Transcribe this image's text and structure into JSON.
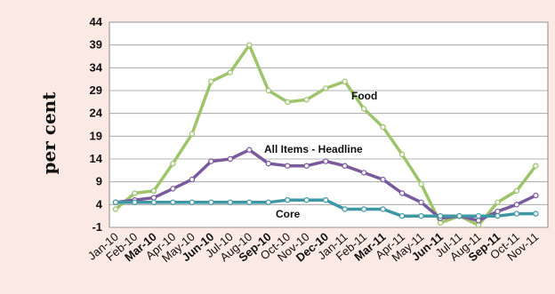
{
  "chart_data": {
    "type": "line",
    "ylabel": "per  cent",
    "ylim": [
      -1,
      44
    ],
    "yticks": [
      44,
      39,
      34,
      29,
      24,
      19,
      14,
      9,
      4,
      -1
    ],
    "grid": true,
    "legend": "none",
    "categories": [
      "Jan-10",
      "Feb-10",
      "Mar-10",
      "Apr-10",
      "May-10",
      "Jun-10",
      "Jul-10",
      "Aug-10",
      "Sep-10",
      "Oct-10",
      "Nov-10",
      "Dec-10",
      "Jan-11",
      "Feb-11",
      "Mar-11",
      "Apr-11",
      "May-11",
      "Jun-11",
      "Jul-11",
      "Aug-11",
      "Sep-11",
      "Oct-11",
      "Nov-11"
    ],
    "bold_categories": [
      "Mar-10",
      "Jun-10",
      "Sep-10",
      "Dec-10",
      "Mar-11",
      "Jun-11",
      "Sep-11"
    ],
    "series": [
      {
        "name": "Food",
        "color": "#9ec46b",
        "values": [
          3,
          6.5,
          7,
          13,
          19.5,
          31,
          33,
          39,
          29,
          26.5,
          27,
          29.5,
          31,
          25,
          21,
          15,
          8.5,
          0,
          1.5,
          -0.5,
          4.5,
          7,
          12.5
        ]
      },
      {
        "name": "All Items - Headline",
        "color": "#7a5a9c",
        "values": [
          4.5,
          5,
          5.5,
          7.5,
          9.5,
          13.5,
          14,
          16,
          13,
          12.5,
          12.5,
          13.5,
          12.5,
          11,
          9.5,
          6.5,
          4.5,
          1,
          1.5,
          0.5,
          2.5,
          4,
          6
        ]
      },
      {
        "name": "Core",
        "color": "#3d97a5",
        "values": [
          4.5,
          4.5,
          4.5,
          4.5,
          4.5,
          4.5,
          4.5,
          4.5,
          4.5,
          5,
          5,
          5,
          3,
          3,
          3,
          1.5,
          1.5,
          1.5,
          1.5,
          1.5,
          1.5,
          2,
          2
        ]
      }
    ]
  }
}
